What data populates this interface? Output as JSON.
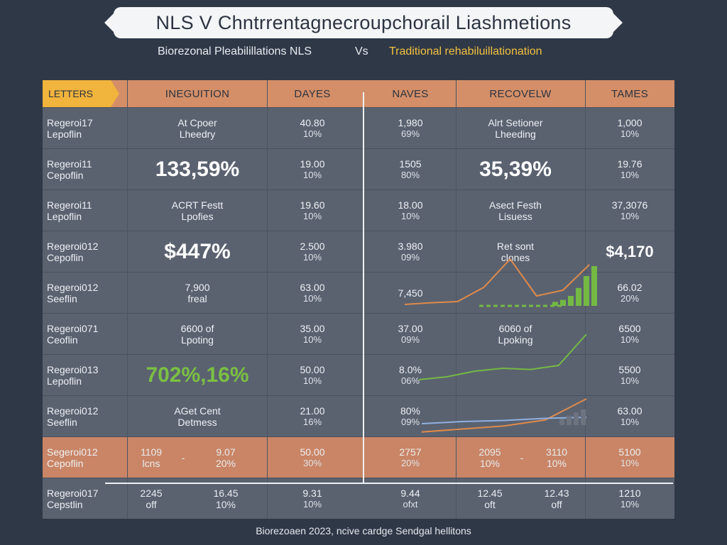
{
  "title": "NLS V Chntrrentagnecroupchorail Liashmetions",
  "subtitle": {
    "left": "Biorezonal Pleabilillations NLS",
    "vs": "Vs",
    "right": "Traditional rehabiluillationation"
  },
  "footer": "Biorezoaen 2023, ncive cardge Sendgal hellitons",
  "colors": {
    "background": "#2f3847",
    "table": "#5a6270",
    "header": "#d48f68",
    "letters_tab": "#f1b43c",
    "highlight_row": "#c98566",
    "accent_yellow": "#f2c23e",
    "accent_green": "#7bc043",
    "line_orange": "#e08a4a",
    "line_green": "#74b944",
    "line_blue": "#8fb0e0"
  },
  "chart_data": {
    "type": "table",
    "columns": [
      "LETTERS",
      "INEGUITION",
      "DAYES",
      "NAVES",
      "RECOVELW",
      "TAMES"
    ],
    "rows": [
      {
        "label": [
          "Regeroi17",
          "Lepoflin"
        ],
        "ineguition": {
          "lines": [
            "At Cpoer",
            "Lheedry"
          ]
        },
        "dayes": [
          "40.80",
          "10%"
        ],
        "naves": [
          "1,980",
          "69%"
        ],
        "recovelw": {
          "lines": [
            "Alrt Setioner",
            "Lheeding"
          ]
        },
        "tames": [
          "1,000",
          "10%"
        ]
      },
      {
        "label": [
          "Regeroi11",
          "Cepoflin"
        ],
        "ineguition": {
          "big": "133,59%"
        },
        "dayes": [
          "19.00",
          "10%"
        ],
        "naves": [
          "1505",
          "80%"
        ],
        "recovelw": {
          "big": "35,39%"
        },
        "tames": [
          "19.76",
          "10%"
        ]
      },
      {
        "label": [
          "Regeroi11",
          "Lepoflin"
        ],
        "ineguition": {
          "lines": [
            "ACRT Festt",
            "Lpofies"
          ]
        },
        "dayes": [
          "19.60",
          "10%"
        ],
        "naves": [
          "18.00",
          "10%"
        ],
        "recovelw": {
          "lines": [
            "Asect Festh",
            "Lisuess"
          ]
        },
        "tames": [
          "37,3076",
          "10%"
        ]
      },
      {
        "label": [
          "Regeroi012",
          "Cepoflin"
        ],
        "ineguition": {
          "big": "$447%"
        },
        "dayes": [
          "2.500",
          "10%"
        ],
        "naves": [
          "3.980",
          "09%"
        ],
        "recovelw": {
          "lines": [
            "Ret sont",
            "clones"
          ]
        },
        "tames_big": "$4,170"
      },
      {
        "label": [
          "Regeroi012",
          "Seeflin"
        ],
        "ineguition": {
          "lines": [
            "7,900",
            "freal"
          ]
        },
        "dayes": [
          "63.00",
          "10%"
        ],
        "naves": [
          "7,450",
          ""
        ],
        "recovelw": {
          "lines": [
            "",
            ""
          ]
        },
        "tames": [
          "66.02",
          "20%"
        ]
      },
      {
        "label": [
          "Regeroi071",
          "Ceoflin"
        ],
        "ineguition": {
          "lines": [
            "6600 of",
            "Lpoting"
          ]
        },
        "dayes": [
          "35.00",
          "10%"
        ],
        "naves": [
          "37.00",
          "09%"
        ],
        "recovelw": {
          "lines": [
            "6060 of",
            "Lpoking"
          ]
        },
        "tames": [
          "6500",
          "10%"
        ]
      },
      {
        "label": [
          "Regeroi013",
          "Lepoflin"
        ],
        "ineguition": {
          "big_green": "702%,16%"
        },
        "dayes": [
          "50.00",
          "10%"
        ],
        "naves": [
          "8.0%",
          "06%"
        ],
        "recovelw": {
          "lines": [
            "",
            ""
          ]
        },
        "tames": [
          "5500",
          "10%"
        ]
      },
      {
        "label": [
          "Regeroi012",
          "Seeflin"
        ],
        "ineguition": {
          "lines": [
            "AGet Cent",
            "Detmess"
          ]
        },
        "dayes": [
          "21.00",
          "16%"
        ],
        "naves": [
          "80%",
          "09%"
        ],
        "recovelw": {
          "lines": [
            "",
            ""
          ]
        },
        "tames": [
          "63.00",
          "10%"
        ]
      },
      {
        "label": [
          "Segeroi012",
          "Cepoflin"
        ],
        "ineguition_pair": [
          [
            "1109",
            "lcns"
          ],
          [
            "-",
            ""
          ],
          [
            "9.07",
            "20%"
          ]
        ],
        "dayes": [
          "50.00",
          "30%"
        ],
        "naves": [
          "2757",
          "20%"
        ],
        "recovelw_pair": [
          [
            "2095",
            "10%"
          ],
          [
            "-",
            ""
          ],
          [
            "3110",
            "10%"
          ]
        ],
        "tames": [
          "5100",
          "10%"
        ]
      },
      {
        "label": [
          "Regeroi017",
          "Cepstlin"
        ],
        "ineguition_pair": [
          [
            "2245",
            "off"
          ],
          [
            "",
            ""
          ],
          [
            "16.45",
            "10%"
          ]
        ],
        "dayes": [
          "9.31",
          "10%"
        ],
        "naves": [
          "9.44",
          "ofxt"
        ],
        "recovelw_pair": [
          [
            "12.45",
            "oft"
          ],
          [
            "",
            ""
          ],
          [
            "12.43",
            "off"
          ]
        ],
        "tames": [
          "1210",
          "10%"
        ]
      }
    ],
    "embedded_series": [
      {
        "name": "",
        "color": "#e08a4a",
        "values": [
          0.05,
          0.08,
          0.1,
          0.35,
          0.85,
          0.2,
          0.3,
          0.75
        ]
      },
      {
        "name": "",
        "color": "#74b944",
        "values": [
          0.1,
          0.15,
          0.25,
          0.3,
          0.28,
          0.35,
          0.9
        ]
      },
      {
        "name": "",
        "color": "#e08a4a",
        "values": [
          0.05,
          0.1,
          0.15,
          0.25,
          0.6
        ]
      },
      {
        "name": "",
        "color": "#8fb0e0",
        "values": [
          0.2,
          0.3,
          0.35,
          0.45,
          0.5
        ]
      }
    ],
    "bars": [
      0.1,
      0.15,
      0.25,
      0.45,
      0.75,
      1.0
    ]
  }
}
